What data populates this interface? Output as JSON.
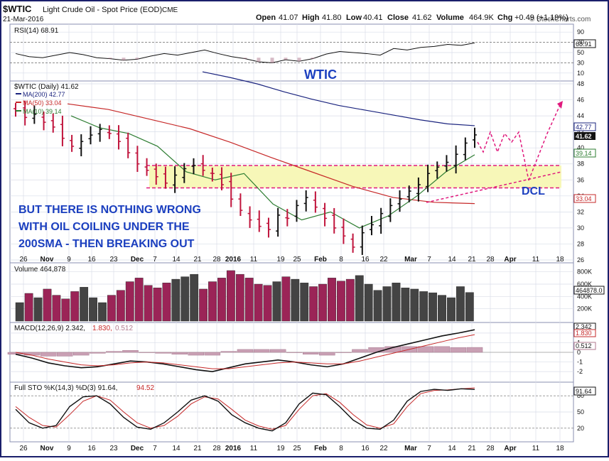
{
  "header": {
    "symbol": "$WTIC",
    "name": "Light Crude Oil - Spot Price (EOD)",
    "exchange": "CME",
    "date": "21-Mar-2016",
    "open_label": "Open",
    "open": "41.07",
    "high_label": "High",
    "high": "41.80",
    "low_label": "Low",
    "low": "40.41",
    "close_label": "Close",
    "close": "41.62",
    "volume_label": "Volume",
    "volume": "464.9K",
    "chg_label": "Chg",
    "chg": "+0.49 (+1.19%)",
    "brand": "© StockCharts.com"
  },
  "colors": {
    "frame": "#1a1f6b",
    "background": "#ffffff",
    "grid": "#d9dde8",
    "bar": "#111111",
    "bar_down": "#c0143c",
    "ma200": "#1a237e",
    "ma50": "#c62828",
    "ma10": "#2e7d32",
    "annotation": "#1b3fbf",
    "dashed_magenta": "#e0197d",
    "volume_up": "#444444",
    "volume_down": "#9b2457",
    "highlight_zone": "#f7f7b8"
  },
  "rsi_panel": {
    "legend": "RSI(14) 68.91",
    "current": "68.91",
    "ticks": [
      "90",
      "70",
      "50",
      "30",
      "10"
    ],
    "series_sampled": [
      48,
      42,
      40,
      45,
      50,
      46,
      40,
      38,
      35,
      37,
      43,
      48,
      45,
      50,
      55,
      48,
      42,
      38,
      32,
      30,
      36,
      33,
      38,
      47,
      52,
      50,
      48,
      45,
      58,
      55,
      60,
      62,
      66,
      64,
      68.91
    ]
  },
  "price_panel": {
    "legend": "$WTIC (Daily) 41.62",
    "ma200_legend": "MA(200) 42.77",
    "ma50_legend": "MA(50) 33.04",
    "ma10_legend": "MA(10) 39.14",
    "ticks": [
      "48",
      "46",
      "44",
      "42",
      "40",
      "38",
      "36",
      "34",
      "32",
      "30",
      "28",
      "26"
    ],
    "labels": {
      "ma200": "42.77",
      "close": "41.62",
      "top": "40",
      "ma10": "39.14",
      "ma50": "33.04"
    },
    "annotation_title": "WTIC",
    "annotation_lines": [
      "BUT THERE IS NOTHING WRONG",
      "WITH OIL COILING UNDER THE",
      "200SMA - THEN BREAKING OUT"
    ],
    "dcl_label": "DCL"
  },
  "volume_panel": {
    "legend": "Volume 464,878",
    "ticks": [
      "800K",
      "600K",
      "400K",
      "200K"
    ],
    "current_label": "464878.0"
  },
  "macd_panel": {
    "legend_main": "MACD(12,26,9) 2.342,",
    "legend_signal": "1.830,",
    "legend_hist": "0.512",
    "labels": {
      "macd": "2.342",
      "signal": "1.830",
      "hist": "0.512"
    },
    "ticks": [
      "2",
      "1",
      "0",
      "-1",
      "-2"
    ]
  },
  "sto_panel": {
    "legend_main": "Full STO %K(14,3) %D(3) 91.64,",
    "legend_d": "94.52",
    "current": "91.64",
    "ticks": [
      "80",
      "50",
      "20"
    ]
  },
  "x_axis": {
    "labels": [
      "26",
      "Nov",
      "9",
      "16",
      "23",
      "Dec",
      "7",
      "14",
      "21",
      "28",
      "2016",
      "11",
      "19",
      "25",
      "Feb",
      "8",
      "16",
      "22",
      "Mar",
      "7",
      "14",
      "21",
      "28",
      "Apr",
      "11",
      "18"
    ]
  },
  "chart_data": {
    "type": "ohlc",
    "title": "$WTIC Light Crude Oil - Spot Price (EOD)",
    "x_range": [
      "2015-10-26",
      "2016-04-18"
    ],
    "ylim": [
      26,
      48
    ],
    "closes_sampled": [
      44.6,
      43.8,
      44.2,
      43.2,
      42.6,
      41.2,
      40.2,
      40.8,
      41.6,
      42.3,
      41.8,
      40.8,
      39.4,
      38.0,
      37.2,
      36.4,
      35.6,
      36.6,
      37.4,
      37.8,
      37.2,
      36.8,
      35.4,
      33.6,
      32.2,
      31.0,
      30.2,
      29.8,
      31.6,
      31.2,
      32.8,
      33.8,
      32.6,
      31.2,
      30.0,
      29.0,
      27.6,
      29.4,
      30.4,
      31.8,
      32.8,
      33.6,
      34.6,
      35.4,
      36.8,
      37.6,
      38.2,
      39.2,
      40.6,
      41.62
    ],
    "ma200_sampled": [
      49.5,
      48.8,
      48.0,
      47.0,
      46.1,
      45.3,
      44.7,
      44.1,
      43.5,
      43.0,
      42.77
    ],
    "ma50_sampled": [
      45.5,
      44.8,
      43.6,
      42.4,
      40.7,
      38.8,
      37.0,
      35.2,
      33.8,
      33.2,
      33.04
    ],
    "ma10_sampled": [
      44.0,
      42.5,
      41.8,
      40.2,
      37.0,
      36.0,
      36.8,
      33.0,
      31.0,
      32.0,
      30.0,
      31.5,
      34.0,
      37.0,
      39.14
    ],
    "volume_sampled_k": [
      300,
      450,
      380,
      520,
      420,
      360,
      480,
      550,
      380,
      300,
      420,
      500,
      640,
      700,
      580,
      540,
      620,
      680,
      720,
      760,
      520,
      640,
      700,
      820,
      760,
      700,
      600,
      580,
      640,
      720,
      680,
      620,
      560,
      600,
      700,
      650,
      680,
      740,
      600,
      500,
      560,
      620,
      540,
      520,
      480,
      460,
      420,
      380,
      560,
      465
    ],
    "macd_sampled": [
      -0.2,
      -0.6,
      -1.1,
      -1.4,
      -1.6,
      -1.5,
      -1.2,
      -0.9,
      -1.0,
      -1.2,
      -1.5,
      -1.8,
      -2.0,
      -1.6,
      -1.2,
      -1.0,
      -0.8,
      -1.0,
      -1.3,
      -1.5,
      -1.2,
      -0.6,
      0.0,
      0.5,
      0.9,
      1.3,
      1.7,
      2.0,
      2.342
    ],
    "signal_sampled": [
      0.0,
      -0.3,
      -0.7,
      -1.0,
      -1.3,
      -1.4,
      -1.3,
      -1.1,
      -1.0,
      -1.1,
      -1.3,
      -1.5,
      -1.7,
      -1.7,
      -1.5,
      -1.3,
      -1.1,
      -1.0,
      -1.1,
      -1.2,
      -1.2,
      -0.9,
      -0.5,
      -0.1,
      0.3,
      0.7,
      1.1,
      1.5,
      1.83
    ],
    "sto_k_sampled": [
      55,
      30,
      20,
      25,
      60,
      78,
      80,
      65,
      40,
      22,
      18,
      30,
      50,
      72,
      80,
      70,
      45,
      30,
      20,
      15,
      30,
      65,
      85,
      82,
      60,
      35,
      20,
      18,
      35,
      70,
      88,
      92,
      90,
      93,
      91.64
    ],
    "sto_d_sampled": [
      60,
      40,
      25,
      22,
      45,
      70,
      80,
      72,
      50,
      30,
      20,
      25,
      42,
      65,
      78,
      74,
      55,
      35,
      24,
      18,
      25,
      55,
      80,
      84,
      68,
      45,
      26,
      20,
      28,
      60,
      84,
      90,
      91,
      93,
      94.52
    ],
    "support_band": [
      35,
      37.8
    ]
  }
}
